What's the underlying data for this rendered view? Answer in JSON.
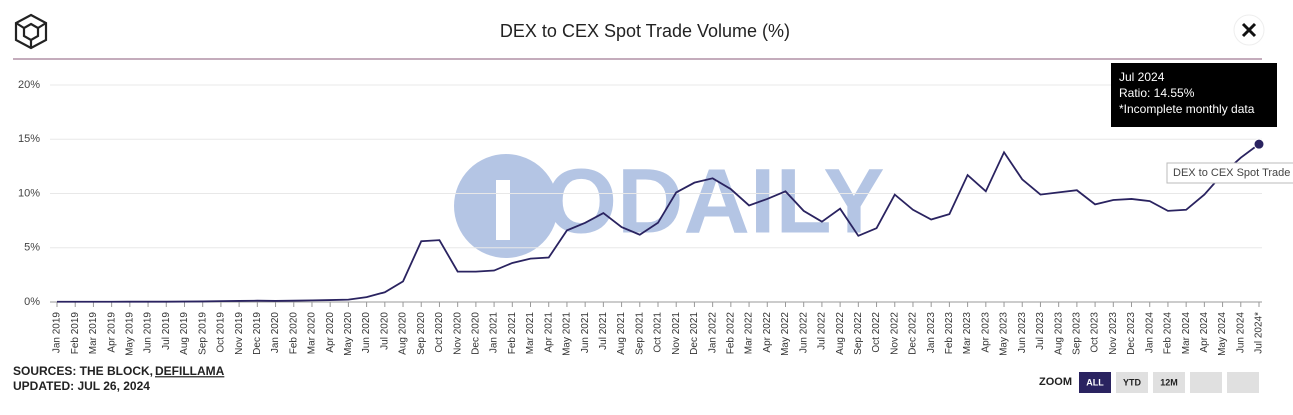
{
  "chart_data": {
    "type": "line",
    "title": "DEX to CEX Spot Trade Volume (%)",
    "categories": [
      "Jan 2019",
      "Feb 2019",
      "Mar 2019",
      "Apr 2019",
      "May 2019",
      "Jun 2019",
      "Jul 2019",
      "Aug 2019",
      "Sep 2019",
      "Oct 2019",
      "Nov 2019",
      "Dec 2019",
      "Jan 2020",
      "Feb 2020",
      "Mar 2020",
      "Apr 2020",
      "May 2020",
      "Jun 2020",
      "Jul 2020",
      "Aug 2020",
      "Sep 2020",
      "Oct 2020",
      "Nov 2020",
      "Dec 2020",
      "Jan 2021",
      "Feb 2021",
      "Mar 2021",
      "Apr 2021",
      "May 2021",
      "Jun 2021",
      "Jul 2021",
      "Aug 2021",
      "Sep 2021",
      "Oct 2021",
      "Nov 2021",
      "Dec 2021",
      "Jan 2022",
      "Feb 2022",
      "Mar 2022",
      "Apr 2022",
      "May 2022",
      "Jun 2022",
      "Jul 2022",
      "Aug 2022",
      "Sep 2022",
      "Oct 2022",
      "Nov 2022",
      "Dec 2022",
      "Jan 2023",
      "Feb 2023",
      "Mar 2023",
      "Apr 2023",
      "May 2023",
      "Jun 2023",
      "Jul 2023",
      "Aug 2023",
      "Sep 2023",
      "Oct 2023",
      "Nov 2023",
      "Dec 2023",
      "Jan 2024",
      "Feb 2024",
      "Mar 2024",
      "Apr 2024",
      "May 2024",
      "Jun 2024",
      "Jul 2024*"
    ],
    "series": [
      {
        "name": "DEX to CEX Spot Trade",
        "color": "#2a2360",
        "values": [
          0.02,
          0.02,
          0.02,
          0.02,
          0.03,
          0.03,
          0.03,
          0.04,
          0.05,
          0.08,
          0.1,
          0.12,
          0.1,
          0.12,
          0.15,
          0.18,
          0.22,
          0.45,
          0.9,
          1.9,
          5.6,
          5.7,
          2.8,
          2.8,
          2.9,
          3.6,
          4.0,
          4.1,
          6.6,
          7.3,
          8.2,
          6.9,
          6.2,
          7.3,
          10.1,
          11.0,
          11.4,
          10.4,
          8.9,
          9.5,
          10.2,
          8.4,
          7.4,
          8.6,
          6.1,
          6.8,
          9.9,
          8.5,
          7.6,
          8.1,
          11.7,
          10.2,
          13.8,
          11.3,
          9.9,
          10.1,
          10.3,
          9.0,
          9.4,
          9.5,
          9.3,
          8.4,
          8.5,
          9.9,
          11.8,
          13.3,
          14.55
        ]
      }
    ],
    "ylim": [
      0,
      20
    ],
    "yticks": [
      {
        "value": 0,
        "label": "0%"
      },
      {
        "value": 5,
        "label": "5%"
      },
      {
        "value": 10,
        "label": "10%"
      },
      {
        "value": 15,
        "label": "15%"
      },
      {
        "value": 20,
        "label": "20%"
      }
    ],
    "grid": true,
    "tooltip": {
      "title": "Jul 2024",
      "lines": [
        "Ratio: 14.55%",
        "*Incomplete monthly data"
      ]
    },
    "watermark": "ODAILY",
    "sources_label": "SOURCES: THE BLOCK,",
    "sources_link": "DEFILLAMA",
    "updated": "UPDATED: JUL 26, 2024",
    "zoom": {
      "label": "ZOOM",
      "buttons": [
        "ALL",
        "YTD",
        "12M"
      ]
    }
  }
}
